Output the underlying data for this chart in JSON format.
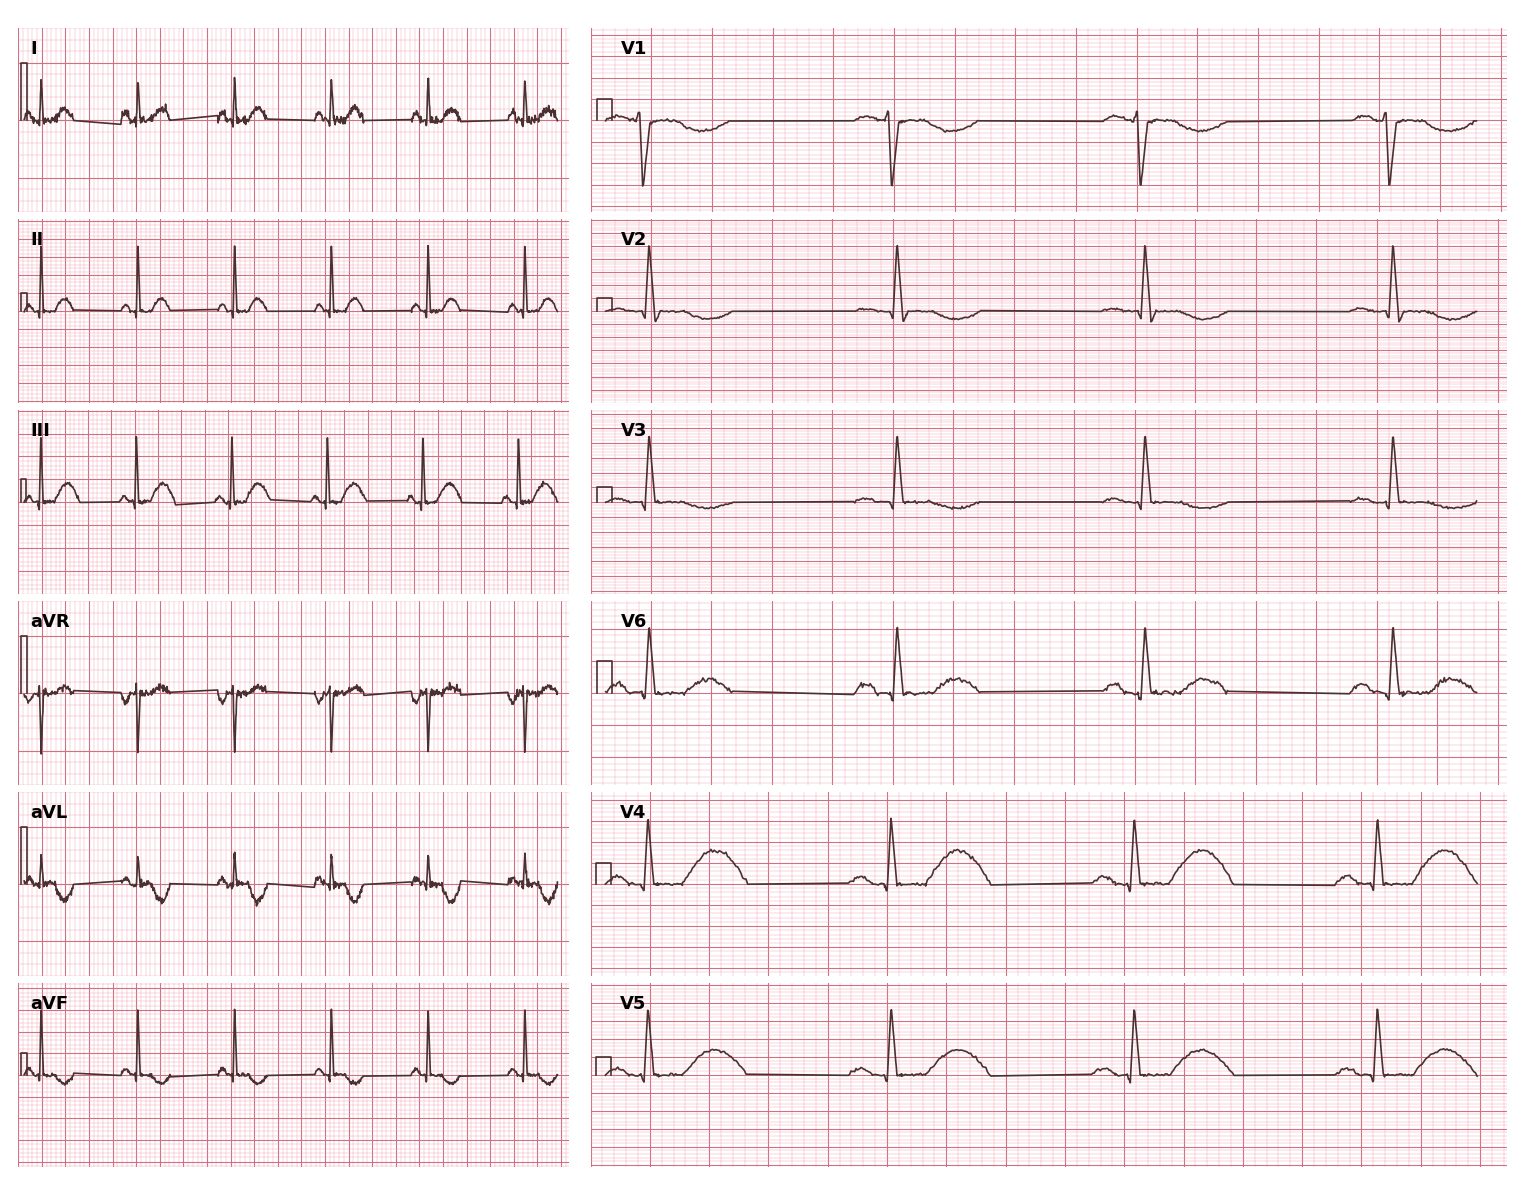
{
  "bg_color": "#f9d4d8",
  "grid_minor_color": "#f0a0b0",
  "grid_major_color": "#d07080",
  "line_color": "#4a3030",
  "line_width": 1.2,
  "label_fontsize": 13,
  "label_fontweight": "bold",
  "left_panel_labels": [
    "I",
    "II",
    "III",
    "aVR",
    "aVL",
    "aVF"
  ],
  "right_panel_labels": [
    "V1",
    "V2",
    "V3",
    "V6",
    "V4",
    "V5"
  ]
}
